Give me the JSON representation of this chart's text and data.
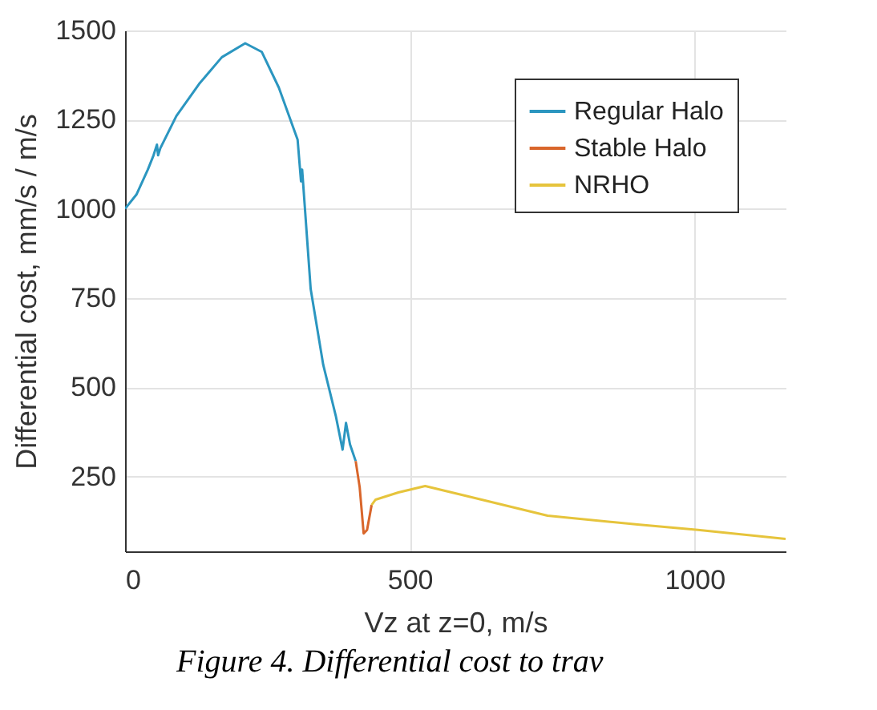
{
  "chart_data": {
    "type": "line",
    "xlabel": "Vz at z=0, m/s",
    "ylabel": "Differential cost, mm/s / m/s",
    "xlim": [
      0,
      1160
    ],
    "ylim": [
      40,
      1500
    ],
    "xticks": [
      0,
      500,
      1000
    ],
    "yticks": [
      250,
      500,
      750,
      1000,
      1250,
      1500
    ],
    "grid": true,
    "legend": "top right",
    "line_style": "solid",
    "annotations": [
      "Figure 4. Differential cost to trav"
    ],
    "series": [
      {
        "name": "Regular Halo",
        "color": "#2b96c0",
        "x": [
          0,
          20,
          40,
          50,
          56,
          58,
          62,
          90,
          130,
          170,
          211,
          240,
          270,
          303,
          309,
          311,
          326,
          348,
          370,
          382,
          388,
          395,
          405
        ],
        "values": [
          1000,
          1040,
          1110,
          1150,
          1180,
          1150,
          1170,
          1260,
          1350,
          1425,
          1464,
          1440,
          1340,
          1194,
          1077,
          1110,
          775,
          563,
          420,
          325,
          400,
          340,
          293
        ]
      },
      {
        "name": "Stable Halo",
        "color": "#d9662b",
        "x": [
          405,
          412,
          419,
          425,
          433
        ],
        "values": [
          293,
          220,
          90,
          100,
          170
        ]
      },
      {
        "name": "NRHO",
        "color": "#e6c43c",
        "x": [
          433,
          440,
          480,
          527,
          600,
          742,
          900,
          1006,
          1160
        ],
        "values": [
          170,
          185,
          205,
          223,
          195,
          140,
          115,
          100,
          75
        ]
      }
    ]
  }
}
